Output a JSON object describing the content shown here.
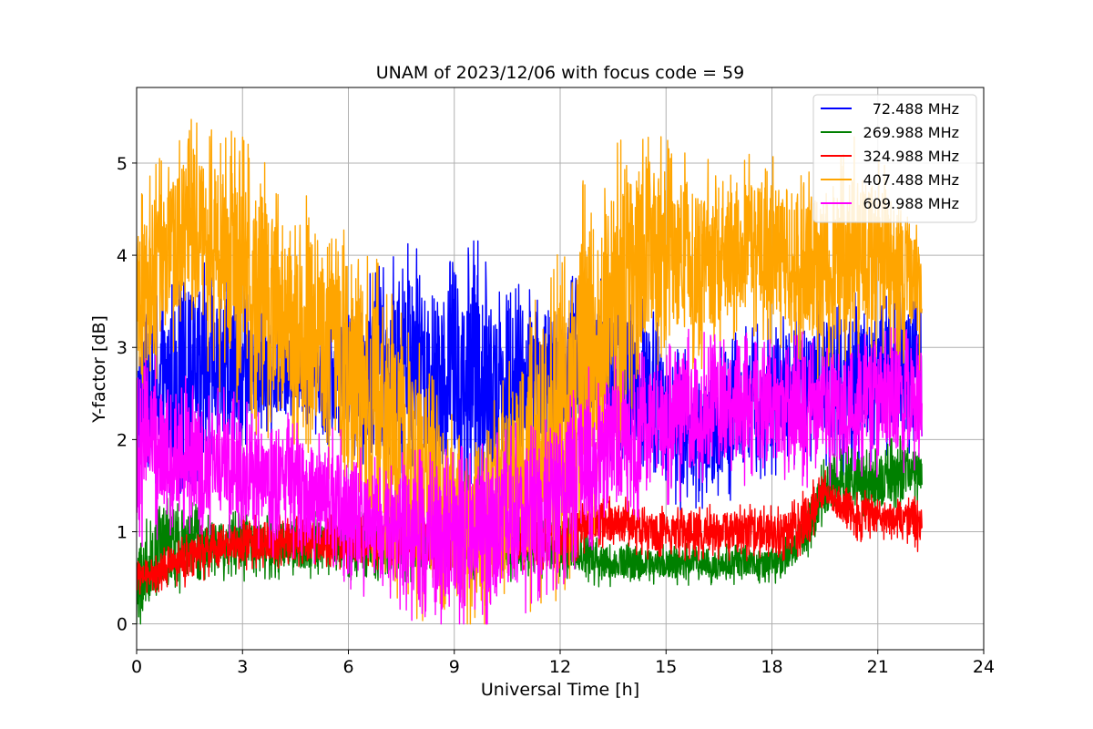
{
  "chart_data": {
    "type": "line",
    "title": "UNAM of 2023/12/06 with focus code = 59",
    "xlabel": "Universal Time [h]",
    "ylabel": "Y-factor [dB]",
    "xlim": [
      0,
      24
    ],
    "ylim": [
      -0.28,
      5.82
    ],
    "xticks": [
      "0",
      "3",
      "6",
      "9",
      "12",
      "15",
      "18",
      "21",
      "24"
    ],
    "yticks": [
      "0",
      "1",
      "2",
      "3",
      "4",
      "5"
    ],
    "grid": true,
    "legend_position": "top-right",
    "series": [
      {
        "name": "  72.488 MHz",
        "color": "#0000ff",
        "x": [
          0,
          0.5,
          1,
          1.5,
          2,
          2.5,
          3,
          3.5,
          4,
          4.5,
          5,
          5.5,
          6,
          6.5,
          7,
          7.5,
          8,
          8.5,
          9,
          9.5,
          10,
          10.5,
          11,
          11.5,
          12,
          12.5,
          13,
          13.5,
          14,
          14.5,
          15,
          15.5,
          16,
          16.5,
          17,
          17.5,
          18,
          18.5,
          19,
          19.5,
          20,
          20.5,
          21,
          21.5,
          22,
          22.25
        ],
        "low": [
          2.0,
          1.9,
          1.8,
          1.9,
          2.0,
          2.0,
          2.1,
          2.2,
          2.3,
          2.3,
          2.3,
          2.2,
          2.1,
          2.0,
          1.9,
          1.9,
          1.8,
          1.7,
          1.7,
          1.7,
          1.7,
          1.8,
          1.9,
          2.0,
          2.1,
          2.2,
          2.2,
          2.1,
          2.0,
          1.9,
          1.6,
          1.5,
          1.5,
          1.6,
          1.7,
          1.8,
          1.9,
          2.0,
          2.0,
          2.0,
          2.0,
          2.0,
          2.1,
          2.1,
          2.1,
          2.1
        ],
        "high": [
          2.9,
          3.3,
          3.5,
          3.6,
          3.6,
          3.5,
          3.4,
          3.3,
          3.2,
          3.1,
          3.1,
          3.2,
          3.3,
          3.4,
          3.6,
          3.7,
          3.7,
          3.7,
          3.7,
          3.7,
          3.6,
          3.6,
          3.5,
          3.4,
          3.4,
          3.5,
          3.5,
          3.4,
          3.3,
          3.2,
          2.8,
          2.7,
          2.6,
          2.7,
          2.9,
          3.0,
          3.1,
          3.2,
          3.2,
          3.3,
          3.3,
          3.3,
          3.4,
          3.4,
          3.3,
          3.2
        ]
      },
      {
        "name": "269.988 MHz",
        "color": "#008000",
        "x": [
          0,
          0.5,
          1,
          1.5,
          2,
          2.5,
          3,
          3.5,
          4,
          4.5,
          5,
          5.5,
          6,
          6.5,
          7,
          7.5,
          8,
          8.5,
          9,
          9.5,
          10,
          10.5,
          11,
          11.5,
          12,
          12.5,
          13,
          13.5,
          14,
          14.5,
          15,
          15.5,
          16,
          16.5,
          17,
          17.5,
          18,
          18.5,
          19,
          19.5,
          20,
          20.5,
          21,
          21.5,
          22,
          22.25
        ],
        "low": [
          0.0,
          0.3,
          0.5,
          0.6,
          0.6,
          0.6,
          0.6,
          0.6,
          0.6,
          0.6,
          0.6,
          0.6,
          0.6,
          0.6,
          0.6,
          0.6,
          0.6,
          0.6,
          0.6,
          0.6,
          0.6,
          0.6,
          0.6,
          0.6,
          0.6,
          0.6,
          0.5,
          0.5,
          0.5,
          0.5,
          0.5,
          0.5,
          0.5,
          0.5,
          0.5,
          0.5,
          0.5,
          0.6,
          0.8,
          1.2,
          1.3,
          1.3,
          1.3,
          1.3,
          1.4,
          1.4
        ],
        "high": [
          0.8,
          1.1,
          1.3,
          1.2,
          1.1,
          1.1,
          1.1,
          1.1,
          1.1,
          1.1,
          1.1,
          1.1,
          1.1,
          1.1,
          1.1,
          1.1,
          1.1,
          1.1,
          1.1,
          1.1,
          1.1,
          1.1,
          1.1,
          1.1,
          1.1,
          1.0,
          0.9,
          0.8,
          0.8,
          0.8,
          0.8,
          0.8,
          0.8,
          0.8,
          0.8,
          0.8,
          0.8,
          0.9,
          1.3,
          1.7,
          1.8,
          1.8,
          1.8,
          1.9,
          1.9,
          1.8
        ]
      },
      {
        "name": "324.988 MHz",
        "color": "#ff0000",
        "x": [
          0,
          0.5,
          1,
          1.5,
          2,
          2.5,
          3,
          3.5,
          4,
          4.5,
          5,
          5.5,
          6,
          6.5,
          7,
          7.5,
          8,
          8.5,
          9,
          9.5,
          10,
          10.5,
          11,
          11.5,
          12,
          12.5,
          13,
          13.5,
          14,
          14.5,
          15,
          15.5,
          16,
          16.5,
          17,
          17.5,
          18,
          18.5,
          19,
          19.5,
          20,
          20.5,
          21,
          21.5,
          22,
          22.25
        ],
        "low": [
          0.4,
          0.4,
          0.5,
          0.5,
          0.6,
          0.7,
          0.7,
          0.7,
          0.7,
          0.7,
          0.7,
          0.7,
          0.7,
          0.7,
          0.7,
          0.7,
          0.7,
          0.7,
          0.7,
          0.7,
          0.7,
          0.7,
          0.7,
          0.7,
          0.7,
          0.8,
          0.9,
          0.9,
          0.9,
          0.8,
          0.8,
          0.8,
          0.8,
          0.8,
          0.8,
          0.8,
          0.8,
          0.8,
          0.9,
          1.3,
          1.1,
          1.0,
          1.0,
          1.0,
          0.9,
          0.9
        ],
        "high": [
          0.7,
          0.7,
          0.8,
          0.9,
          1.0,
          1.0,
          1.1,
          1.1,
          1.1,
          1.1,
          1.1,
          1.1,
          1.1,
          1.1,
          1.1,
          1.1,
          1.1,
          1.1,
          1.1,
          1.1,
          1.1,
          1.1,
          1.1,
          1.1,
          1.1,
          1.2,
          1.3,
          1.3,
          1.3,
          1.2,
          1.2,
          1.2,
          1.2,
          1.2,
          1.2,
          1.2,
          1.2,
          1.2,
          1.4,
          1.6,
          1.4,
          1.4,
          1.3,
          1.3,
          1.3,
          1.3
        ]
      },
      {
        "name": "407.488 MHz",
        "color": "#ffa500",
        "x": [
          0,
          0.5,
          1,
          1.5,
          2,
          2.5,
          3,
          3.5,
          4,
          4.5,
          5,
          5.5,
          6,
          6.5,
          7,
          7.5,
          8,
          8.5,
          9,
          9.5,
          10,
          10.5,
          11,
          11.5,
          12,
          12.5,
          13,
          13.5,
          14,
          14.5,
          15,
          15.5,
          16,
          16.5,
          17,
          17.5,
          18,
          18.5,
          19,
          19.5,
          20,
          20.5,
          21,
          21.5,
          22,
          22.25
        ],
        "low": [
          2.6,
          3.0,
          3.4,
          3.5,
          3.2,
          3.0,
          2.8,
          2.6,
          2.5,
          2.4,
          2.3,
          2.0,
          1.6,
          1.3,
          1.0,
          0.8,
          0.6,
          0.5,
          0.4,
          0.3,
          0.4,
          0.5,
          0.6,
          0.8,
          1.0,
          1.3,
          1.6,
          2.2,
          2.8,
          3.0,
          3.2,
          3.2,
          3.2,
          3.3,
          3.4,
          3.4,
          3.4,
          3.3,
          3.1,
          3.0,
          3.1,
          3.2,
          3.2,
          3.2,
          3.1,
          3.0
        ],
        "high": [
          4.2,
          4.6,
          4.9,
          5.2,
          5.0,
          4.9,
          4.8,
          4.6,
          4.5,
          4.4,
          4.3,
          4.2,
          3.9,
          3.6,
          3.3,
          3.0,
          2.6,
          2.2,
          1.9,
          1.8,
          2.0,
          2.4,
          2.8,
          3.2,
          3.5,
          4.0,
          4.5,
          4.7,
          4.8,
          4.9,
          4.9,
          4.8,
          4.7,
          4.7,
          4.8,
          4.8,
          4.8,
          4.7,
          4.6,
          4.6,
          4.8,
          4.9,
          4.7,
          4.5,
          4.3,
          4.0
        ]
      },
      {
        "name": "609.988 MHz",
        "color": "#ff00ff",
        "x": [
          0,
          0.5,
          1,
          1.5,
          2,
          2.5,
          3,
          3.5,
          4,
          4.5,
          5,
          5.5,
          6,
          6.5,
          7,
          7.5,
          8,
          8.5,
          9,
          9.5,
          10,
          10.5,
          11,
          11.5,
          12,
          12.5,
          13,
          13.5,
          14,
          14.5,
          15,
          15.5,
          16,
          16.5,
          17,
          17.5,
          18,
          18.5,
          19,
          19.5,
          20,
          20.5,
          21,
          21.5,
          22,
          22.25
        ],
        "low": [
          1.2,
          1.3,
          1.3,
          1.3,
          1.2,
          1.2,
          1.1,
          1.1,
          1.0,
          1.0,
          0.9,
          0.8,
          0.7,
          0.6,
          0.5,
          0.4,
          0.3,
          0.3,
          0.3,
          0.3,
          0.3,
          0.4,
          0.5,
          0.6,
          0.8,
          1.0,
          1.2,
          1.3,
          1.4,
          1.5,
          1.6,
          1.7,
          1.7,
          1.8,
          1.8,
          1.8,
          1.8,
          1.8,
          1.8,
          1.8,
          1.8,
          1.9,
          1.9,
          1.9,
          1.9,
          1.9
        ],
        "high": [
          2.7,
          2.6,
          2.5,
          2.4,
          2.3,
          2.3,
          2.2,
          2.1,
          2.1,
          2.0,
          1.9,
          1.9,
          1.8,
          1.7,
          1.6,
          1.6,
          1.6,
          1.6,
          1.6,
          1.6,
          1.7,
          1.8,
          1.9,
          2.0,
          2.2,
          2.4,
          2.5,
          2.6,
          2.6,
          2.7,
          2.8,
          2.9,
          2.9,
          2.9,
          2.9,
          2.9,
          2.9,
          2.9,
          2.9,
          2.9,
          2.9,
          3.0,
          3.0,
          3.0,
          2.9,
          2.9
        ]
      }
    ]
  }
}
